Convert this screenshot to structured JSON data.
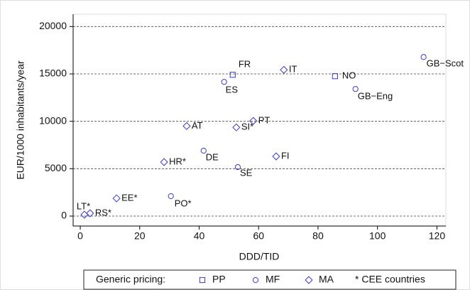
{
  "chart_data": {
    "type": "scatter",
    "x_label": "DDD/TID",
    "y_label": "EUR/1000 inhabitants/year",
    "xlim": [
      -2.4,
      123
    ],
    "ylim": [
      -1050,
      21300
    ],
    "xticks": [
      0,
      20,
      40,
      60,
      80,
      100,
      120
    ],
    "yticks": [
      0,
      5000,
      10000,
      15000,
      20000
    ],
    "grid": true,
    "legend_title": "Generic pricing:",
    "legend_note": "* CEE countries",
    "series": [
      {
        "name": "PP",
        "marker": "square",
        "color": "#3a3ad0",
        "x": [
          51.3,
          85.7
        ],
        "values": [
          14910,
          14760
        ],
        "labels": [
          "FR",
          "NO"
        ]
      },
      {
        "name": "MF",
        "marker": "circle",
        "color": "#3a3ad0",
        "x": [
          48.4,
          30.5,
          41.5,
          53,
          92.6,
          115.5
        ],
        "values": [
          14160,
          2100,
          6900,
          5170,
          13410,
          16780
        ],
        "labels": [
          "ES",
          "PO*",
          "DE",
          "SE",
          "GB−Eng",
          "GB−Scot"
        ]
      },
      {
        "name": "MA",
        "marker": "diamond",
        "color": "#3a3ad0",
        "x": [
          1.4,
          3.3,
          12.2,
          28.2,
          35.8,
          52.5,
          58.2,
          65.9,
          68.5
        ],
        "values": [
          150,
          300,
          1870,
          5700,
          9500,
          9360,
          10040,
          6300,
          15430
        ],
        "labels": [
          "LT*",
          "RS*",
          "EE*",
          "HR*",
          "AT",
          "SI*",
          "PT",
          "FI",
          "IT"
        ]
      }
    ]
  }
}
